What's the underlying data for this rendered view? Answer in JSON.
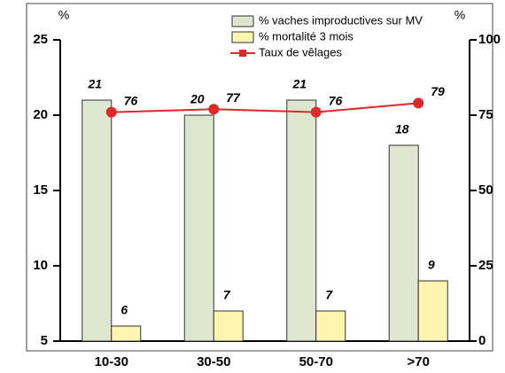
{
  "chart_data": {
    "type": "bar",
    "categories": [
      "10-30",
      "30-50",
      "50-70",
      ">70"
    ],
    "series": [
      {
        "name": "% vaches improductives sur MV",
        "color": "#dfe6cf",
        "values": [
          21,
          20,
          21,
          18
        ]
      },
      {
        "name": "% mortalité 3 mois",
        "color": "#fff4b0",
        "values": [
          6,
          7,
          7,
          9
        ]
      },
      {
        "name": "Taux de vêlages",
        "color": "#e02828",
        "type": "line",
        "axis": "y2",
        "values": [
          76,
          77,
          76,
          79
        ]
      }
    ],
    "y_label": "%",
    "y2_label": "%",
    "ylim": [
      5,
      25
    ],
    "yticks": [
      5,
      10,
      15,
      20,
      25
    ],
    "y2lim": [
      0,
      100
    ],
    "y2ticks": [
      0,
      25,
      50,
      75,
      100
    ],
    "legend": "top"
  }
}
